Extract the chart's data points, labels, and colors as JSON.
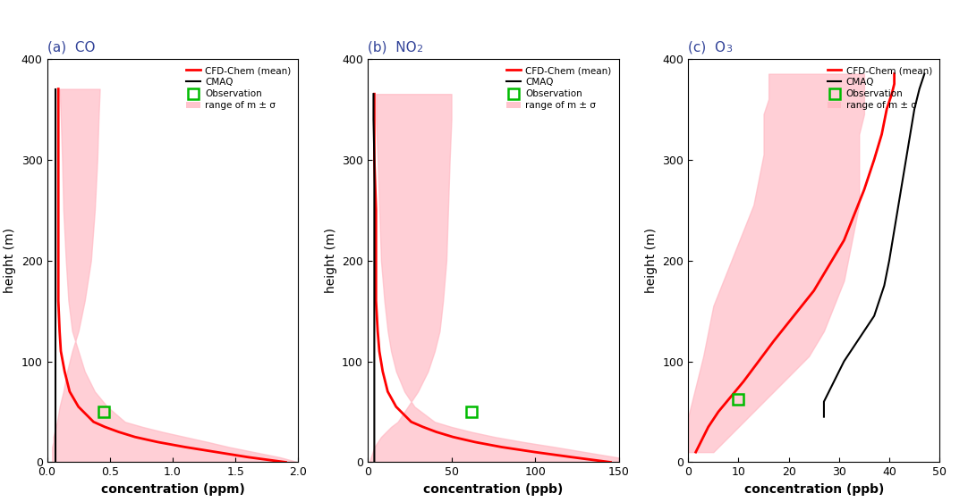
{
  "panels": [
    {
      "label": "(a)",
      "title": "CO",
      "title_sub": null,
      "xlabel": "concentration (ppm)",
      "xlim": [
        0,
        2.0
      ],
      "xticks": [
        0.0,
        0.5,
        1.0,
        1.5,
        2.0
      ],
      "ylim": [
        0,
        400
      ],
      "yticks": [
        0,
        100,
        200,
        300,
        400
      ],
      "ylabel": "height (m)",
      "obs_x": 0.45,
      "obs_y": 50,
      "cmaq_x": [
        0.07,
        0.07,
        0.07,
        0.07,
        0.07,
        0.07,
        0.07,
        0.07,
        0.07,
        0.07,
        0.07,
        0.07,
        0.07,
        0.07,
        0.07,
        0.07,
        0.07,
        0.07,
        0.07,
        0.07,
        0.07
      ],
      "cmaq_y": [
        0,
        10,
        20,
        30,
        40,
        50,
        60,
        70,
        80,
        100,
        120,
        140,
        160,
        180,
        200,
        220,
        250,
        280,
        320,
        350,
        370
      ],
      "cfd_mean_x": [
        1.9,
        1.6,
        1.35,
        1.1,
        0.88,
        0.7,
        0.57,
        0.46,
        0.37,
        0.25,
        0.18,
        0.14,
        0.11,
        0.1,
        0.09,
        0.09,
        0.09,
        0.09,
        0.09,
        0.09
      ],
      "cfd_mean_y": [
        0,
        5,
        10,
        15,
        20,
        25,
        30,
        35,
        40,
        55,
        70,
        90,
        110,
        130,
        160,
        200,
        250,
        300,
        340,
        370
      ],
      "shade_x_low": [
        0.04,
        0.04,
        0.04,
        0.04,
        0.05,
        0.05,
        0.06,
        0.07,
        0.08,
        0.1,
        0.13,
        0.16,
        0.2,
        0.25,
        0.3,
        0.35,
        0.38,
        0.4,
        0.41,
        0.42
      ],
      "shade_x_high": [
        2.0,
        1.85,
        1.65,
        1.45,
        1.28,
        1.1,
        0.92,
        0.76,
        0.62,
        0.48,
        0.38,
        0.3,
        0.25,
        0.2,
        0.17,
        0.15,
        0.13,
        0.12,
        0.11,
        0.1
      ],
      "shade_y": [
        0,
        5,
        10,
        15,
        20,
        25,
        30,
        35,
        40,
        55,
        70,
        90,
        110,
        130,
        160,
        200,
        250,
        300,
        340,
        370
      ]
    },
    {
      "label": "(b)",
      "title": "NO",
      "title_sub": "2",
      "xlabel": "concentration (ppb)",
      "xlim": [
        0,
        150
      ],
      "xticks": [
        0,
        50,
        100,
        150
      ],
      "ylim": [
        0,
        400
      ],
      "yticks": [
        0,
        100,
        200,
        300,
        400
      ],
      "ylabel": "height (m)",
      "obs_x": 62,
      "obs_y": 50,
      "cmaq_x": [
        4.0,
        4.0,
        4.0,
        4.0,
        4.0,
        4.0,
        4.0,
        4.0,
        4.0,
        4.0,
        4.0,
        4.0,
        4.0,
        4.0,
        4.0,
        4.0,
        4.0,
        4.0,
        3.5,
        3.5
      ],
      "cmaq_y": [
        0,
        10,
        20,
        30,
        40,
        50,
        60,
        70,
        80,
        100,
        120,
        140,
        160,
        180,
        200,
        220,
        250,
        300,
        340,
        365
      ],
      "cfd_mean_x": [
        145,
        122,
        100,
        80,
        64,
        51,
        41,
        33,
        26,
        17,
        12,
        9,
        7,
        6,
        5,
        5,
        5,
        4,
        4,
        4
      ],
      "cfd_mean_y": [
        0,
        5,
        10,
        15,
        20,
        25,
        30,
        35,
        40,
        55,
        70,
        90,
        110,
        130,
        160,
        200,
        250,
        300,
        340,
        365
      ],
      "shade_x_low": [
        1,
        2,
        3,
        4,
        6,
        8,
        11,
        14,
        18,
        24,
        30,
        36,
        40,
        43,
        45,
        47,
        48,
        49,
        50,
        50
      ],
      "shade_x_high": [
        165,
        148,
        130,
        112,
        93,
        76,
        62,
        50,
        40,
        28,
        22,
        17,
        14,
        12,
        10,
        8,
        7,
        6,
        5,
        5
      ],
      "shade_y": [
        0,
        5,
        10,
        15,
        20,
        25,
        30,
        35,
        40,
        55,
        70,
        90,
        110,
        130,
        160,
        200,
        250,
        300,
        340,
        365
      ]
    },
    {
      "label": "(c)",
      "title": "O",
      "title_sub": "3",
      "xlabel": "concentration (ppb)",
      "xlim": [
        0,
        50
      ],
      "xticks": [
        0,
        10,
        20,
        30,
        40,
        50
      ],
      "ylim": [
        0,
        400
      ],
      "yticks": [
        0,
        100,
        200,
        300,
        400
      ],
      "ylabel": "height (m)",
      "obs_x": 10,
      "obs_y": 62,
      "cmaq_x": [
        27,
        27,
        27,
        27,
        27.5,
        28,
        28.5,
        29,
        30,
        31,
        33,
        35,
        37,
        38,
        39,
        40,
        41,
        42,
        43,
        44,
        45,
        46,
        47
      ],
      "cmaq_y": [
        45,
        50,
        55,
        60,
        65,
        70,
        75,
        80,
        90,
        100,
        115,
        130,
        145,
        160,
        175,
        200,
        230,
        260,
        290,
        320,
        350,
        370,
        385
      ],
      "cfd_mean_x": [
        1.5,
        2.5,
        4,
        6,
        8.5,
        11,
        14,
        17,
        21,
        25,
        28,
        31,
        33,
        35,
        37,
        38.5,
        39.5,
        40.5,
        41,
        41
      ],
      "cfd_mean_y": [
        10,
        20,
        35,
        50,
        65,
        80,
        100,
        120,
        145,
        170,
        195,
        220,
        245,
        270,
        300,
        325,
        350,
        365,
        375,
        385
      ],
      "shade_x_low": [
        0,
        0,
        0,
        1,
        2,
        3,
        4,
        5,
        7,
        9,
        11,
        13,
        14,
        15,
        15,
        15,
        16,
        16,
        16,
        16
      ],
      "shade_x_high": [
        5,
        8,
        12,
        16,
        20,
        24,
        27,
        29,
        31,
        32,
        33,
        34,
        34,
        34,
        34,
        35,
        35,
        35,
        35,
        35
      ],
      "shade_y": [
        10,
        25,
        45,
        65,
        85,
        105,
        130,
        155,
        180,
        205,
        230,
        255,
        280,
        305,
        325,
        345,
        360,
        372,
        380,
        385
      ]
    }
  ],
  "cfd_color": "#ff0000",
  "cmaq_color": "#000000",
  "obs_color": "#00bb00",
  "shade_color": "#ffb6c1",
  "shade_alpha": 0.65,
  "legend_labels": [
    "CFD-Chem (mean)",
    "CMAQ",
    "Observation",
    "range of m ± σ"
  ],
  "title_color": "#334499",
  "label_fontsize": 11,
  "axis_label_fontsize": 10,
  "tick_fontsize": 9
}
